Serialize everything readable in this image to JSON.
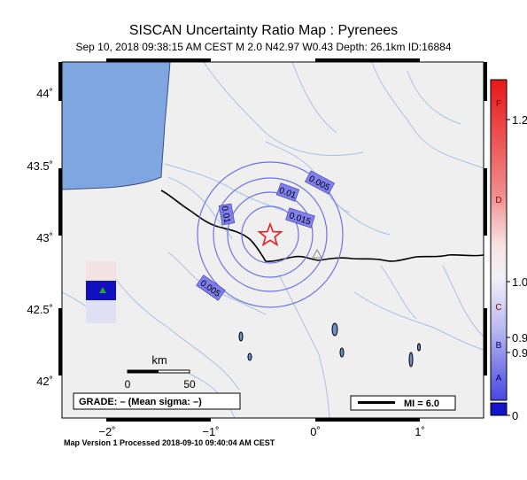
{
  "map": {
    "title": "SISCAN Uncertainty Ratio Map : Pyrenees",
    "subtitle": "Sep 10, 2018 09:38:15 AM CEST   M 2.0   N42.97 W0.43   Depth: 26.1km   ID:16884",
    "footer": "Map Version 1 Processed 2018-09-10 09:40:04 AM CEST",
    "lat_ticks": [
      "44˚",
      "43.5˚",
      "43˚",
      "42.5˚",
      "42˚"
    ],
    "lon_ticks": [
      "−2˚",
      "−1˚",
      "0˚",
      "1˚"
    ],
    "contour_labels": [
      "0.005",
      "0.01",
      "0.015",
      "0.01",
      "0.005"
    ],
    "scale_bar": {
      "unit": "km",
      "ticks": [
        "0",
        "50"
      ]
    },
    "grade_text": "GRADE: – (Mean sigma: –)",
    "mi_legend": "MI = 6.0",
    "colorbar": {
      "letters": [
        "F",
        "D",
        "C",
        "B",
        "A"
      ],
      "values": [
        "1.2",
        "1.0",
        "0.9",
        "0.9",
        "0"
      ]
    },
    "colors": {
      "sea": "#7fa6e0",
      "land": "#efefef",
      "contour": "#6f72e4",
      "contour_label_bg": "#7f7ff0",
      "epicenter": "#e02020",
      "colorbar_top": "#e82020",
      "colorbar_bottom": "#2020c8"
    },
    "icons": {
      "epicenter": "star-icon",
      "station": "triangle-icon"
    }
  }
}
